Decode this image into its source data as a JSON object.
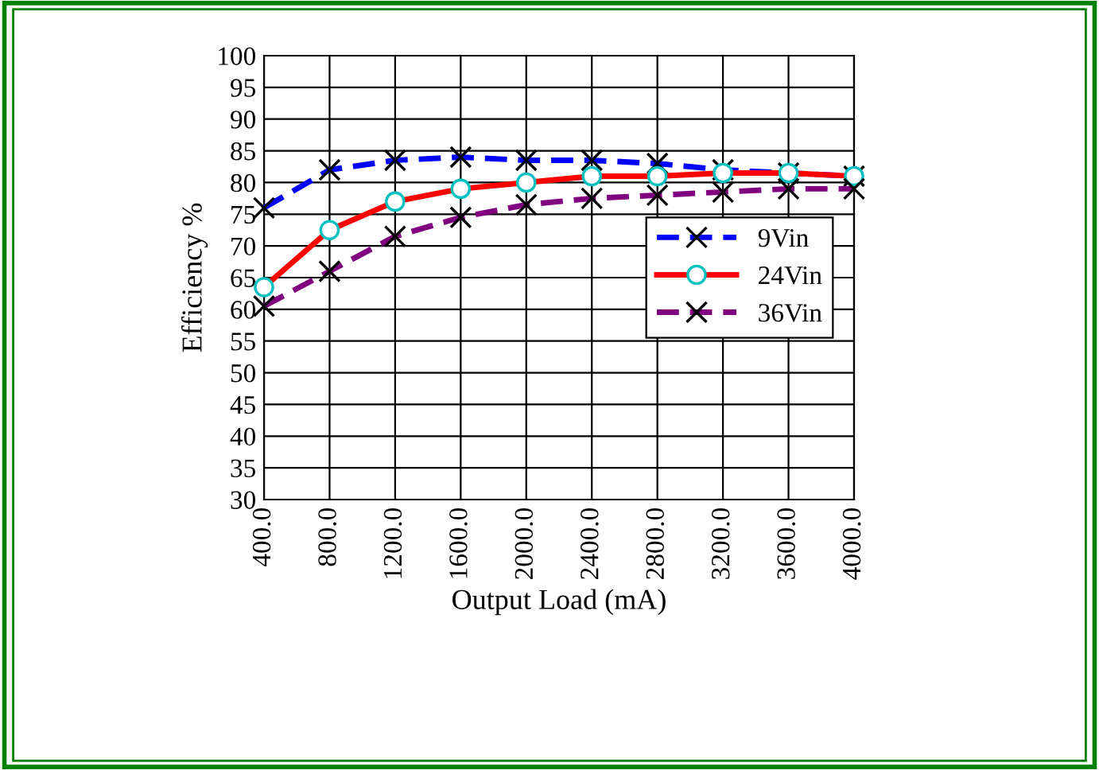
{
  "chart_data": {
    "type": "line",
    "xlabel": "Output Load (mA)",
    "ylabel": "Efficiency %",
    "categories": [
      "400.0",
      "800.0",
      "1200.0",
      "1600.0",
      "2000.0",
      "2400.0",
      "2800.0",
      "3200.0",
      "3600.0",
      "4000.0"
    ],
    "ylim": [
      30,
      100
    ],
    "yticks": [
      30,
      35,
      40,
      45,
      50,
      55,
      60,
      65,
      70,
      75,
      80,
      85,
      90,
      95,
      100
    ],
    "grid": true,
    "legend": "right",
    "series": [
      {
        "name": "9Vin",
        "color": "#0000ff",
        "marker": "cross",
        "line_style": "dashed",
        "values": [
          76,
          82,
          83.5,
          84,
          83.5,
          83.5,
          83,
          82,
          81.5,
          81
        ]
      },
      {
        "name": "24Vin",
        "color": "#ff0000",
        "marker": "circle",
        "line_style": "solid",
        "values": [
          63.5,
          72.5,
          77,
          79,
          80,
          81,
          81,
          81.5,
          81.5,
          81
        ]
      },
      {
        "name": "36Vin",
        "color": "#800080",
        "marker": "cross",
        "line_style": "dashed",
        "values": [
          60.5,
          66,
          71.5,
          74.5,
          76.5,
          77.5,
          78,
          78.5,
          79,
          79
        ]
      }
    ]
  }
}
